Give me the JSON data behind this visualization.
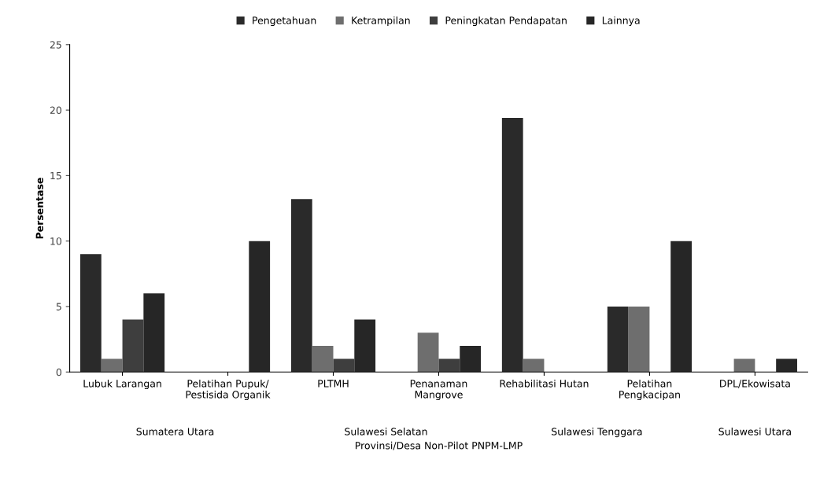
{
  "chart_data": {
    "type": "bar",
    "xlabel": "Provinsi/Desa Non-Pilot PNPM-LMP",
    "ylabel": "Persentase",
    "categories": [
      "Lubuk Larangan",
      "Pelatihan Pupuk/\nPestisida Organik",
      "PLTMH",
      "Penanaman\nMangrove",
      "Rehabilitasi Hutan",
      "Pelatihan\nPengkacipan",
      "DPL/Ekowisata"
    ],
    "series": [
      {
        "name": "Pengetahuan",
        "color": "#2a2a2a",
        "values": [
          9,
          0,
          13.2,
          0,
          19.4,
          5,
          0
        ]
      },
      {
        "name": "Ketrampilan",
        "color": "#6e6e6e",
        "values": [
          1,
          0,
          2,
          3,
          1,
          5,
          1
        ]
      },
      {
        "name": "Peningkatan Pendapatan",
        "color": "#3e3e3e",
        "values": [
          4,
          0,
          1,
          1,
          0,
          0,
          0
        ]
      },
      {
        "name": "Lainnya",
        "color": "#262626",
        "values": [
          6,
          10,
          4,
          2,
          0,
          10,
          1
        ]
      }
    ],
    "annotations": [
      "Sumatera Utara",
      "Sulawesi Selatan",
      "Sulawesi Tenggara",
      "Sulawesi Utara"
    ],
    "ylim": [
      0,
      25
    ],
    "yticks": [
      0,
      5,
      10,
      15,
      20,
      25
    ],
    "grid": false,
    "legend": "top"
  }
}
